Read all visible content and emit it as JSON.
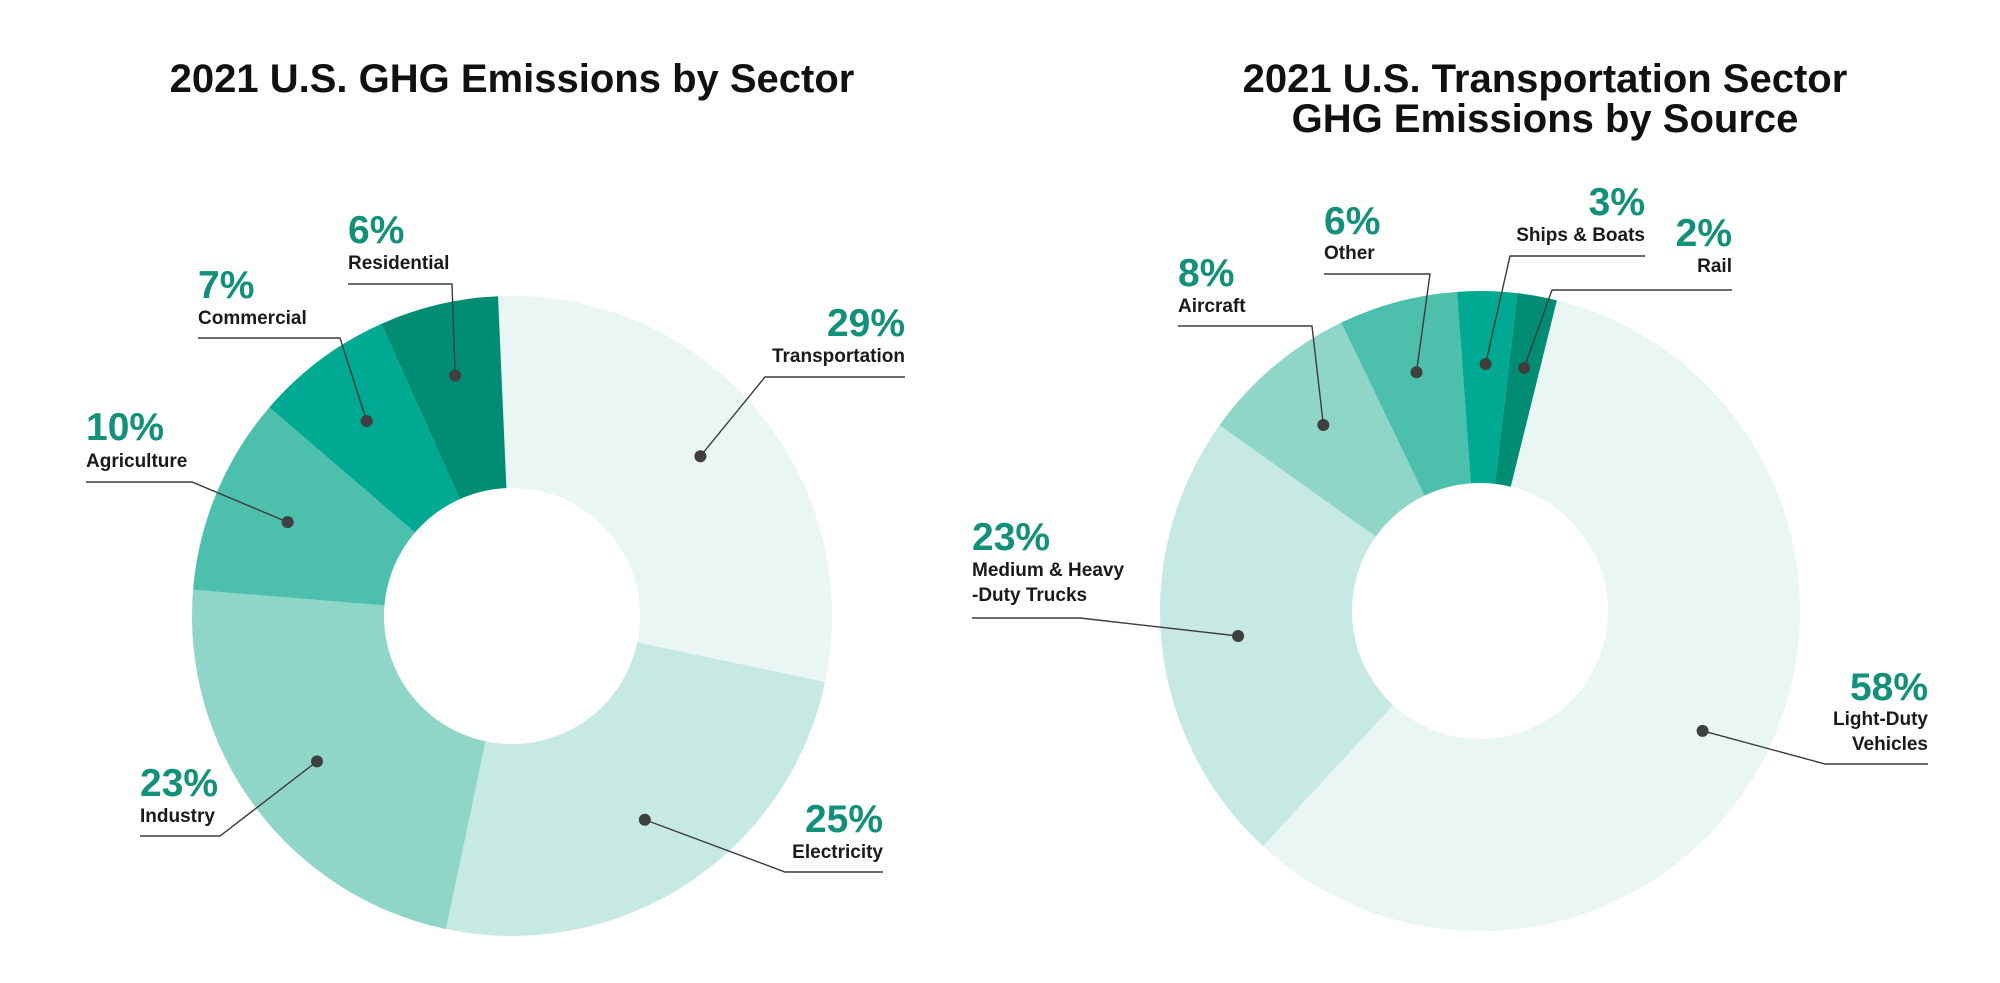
{
  "colors": {
    "accent": "#12907a",
    "ramp": [
      "#eaf6f4",
      "#c6e9e3",
      "#8fd6c9",
      "#4dbfad",
      "#00a991",
      "#008d74"
    ]
  },
  "chart_data": [
    {
      "type": "pie",
      "title": [
        "2021 U.S. GHG Emissions by Sector"
      ],
      "slices": [
        {
          "name": "Transportation",
          "pct_label": "29%",
          "value": 29,
          "color": "#eaf6f4"
        },
        {
          "name": "Electricity",
          "pct_label": "25%",
          "value": 25,
          "color": "#c6e9e3"
        },
        {
          "name": "Industry",
          "pct_label": "23%",
          "value": 23,
          "color": "#8fd6c9"
        },
        {
          "name": "Agriculture",
          "pct_label": "10%",
          "value": 10,
          "color": "#4dbfad"
        },
        {
          "name": "Commercial",
          "pct_label": "7%",
          "value": 7,
          "color": "#00a991"
        },
        {
          "name": "Residential",
          "pct_label": "6%",
          "value": 6,
          "color": "#008d74"
        }
      ]
    },
    {
      "type": "pie",
      "title": [
        "2021 U.S. Transportation Sector",
        "GHG Emissions by Source"
      ],
      "slices": [
        {
          "name": "Light-Duty Vehicles",
          "pct_label": "58%",
          "value": 58,
          "color": "#eaf6f4"
        },
        {
          "name": "Medium & Heavy -Duty Trucks",
          "pct_label": "23%",
          "value": 23,
          "color": "#c6e9e3"
        },
        {
          "name": "Aircraft",
          "pct_label": "8%",
          "value": 8,
          "color": "#8fd6c9"
        },
        {
          "name": "Other",
          "pct_label": "6%",
          "value": 6,
          "color": "#4dbfad"
        },
        {
          "name": "Ships & Boats",
          "pct_label": "3%",
          "value": 3,
          "color": "#00a991"
        },
        {
          "name": "Rail",
          "pct_label": "2%",
          "value": 2,
          "color": "#008d74"
        }
      ]
    }
  ]
}
